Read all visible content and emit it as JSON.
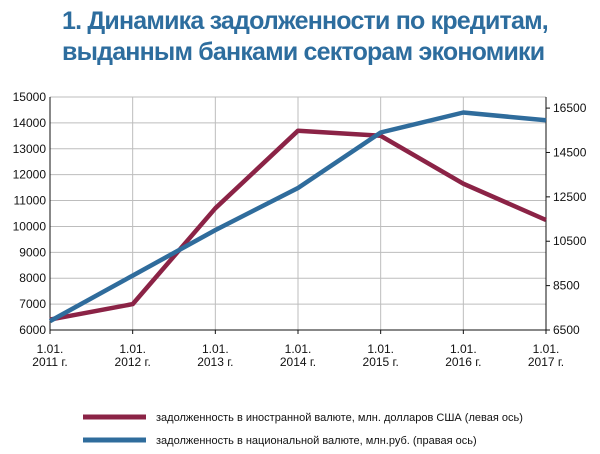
{
  "title": {
    "line1": "1. Динамика задолженности по кредитам,",
    "line2": "выданным банками секторам экономики"
  },
  "colors": {
    "title": "#2d6d9e",
    "foreign_series": "#8b2346",
    "national_series": "#2f6c9c",
    "grid": "#bdbdbd",
    "axis": "#111111"
  },
  "chart_data": {
    "type": "line",
    "title": "1. Динамика задолженности по кредитам, выданным банками секторам экономики",
    "categories": [
      [
        "1.01.",
        "2011 г."
      ],
      [
        "1.01.",
        "2012 г."
      ],
      [
        "1.01.",
        "2013 г."
      ],
      [
        "1.01.",
        "2014 г."
      ],
      [
        "1.01.",
        "2015 г."
      ],
      [
        "1.01.",
        "2016 г."
      ],
      [
        "1.01.",
        "2017 г."
      ]
    ],
    "y_left": {
      "ylim": [
        6000,
        15000
      ],
      "ticks": [
        6000,
        7000,
        8000,
        9000,
        10000,
        11000,
        12000,
        13000,
        14000,
        15000
      ]
    },
    "y_right": {
      "ylim": [
        6500,
        17000
      ],
      "ticks": [
        6500,
        8500,
        10500,
        12500,
        14500,
        16500
      ]
    },
    "series": [
      {
        "name": "задолженность в иностранной валюте, млн. долларов США (левая ось)",
        "axis": "left",
        "color": "#8b2346",
        "values": [
          6400,
          7000,
          10700,
          13700,
          13500,
          11650,
          10250
        ]
      },
      {
        "name": "задолженность в национальной валюте, млн.руб. (правая ось)",
        "axis": "right",
        "color": "#2f6c9c",
        "values": [
          6900,
          8950,
          11000,
          12900,
          15400,
          16300,
          15950
        ]
      }
    ],
    "grid": true,
    "legend_position": "bottom"
  }
}
